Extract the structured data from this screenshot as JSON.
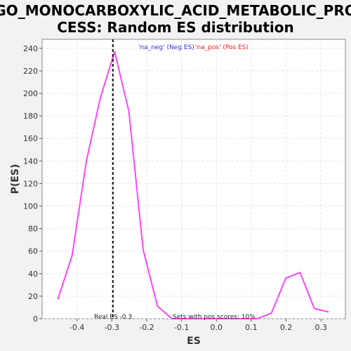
{
  "chart_data": {
    "type": "line",
    "title_line1": "GO_MONOCARBOXYLIC_ACID_METABOLIC_PRO",
    "title_line2": "CESS: Random ES distribution",
    "xlabel": "ES",
    "ylabel": "P(ES)",
    "xlim": [
      -0.5,
      0.37
    ],
    "ylim": [
      0,
      248
    ],
    "xticks": [
      -0.4,
      -0.3,
      -0.2,
      -0.1,
      0.0,
      0.1,
      0.2,
      0.3
    ],
    "xtick_labels": [
      "-0.4",
      "-0.3",
      "-0.2",
      "-0.1",
      "0.0",
      "0.1",
      "0.2",
      "0.3"
    ],
    "yticks": [
      0,
      20,
      40,
      60,
      80,
      100,
      120,
      140,
      160,
      180,
      200,
      220,
      240
    ],
    "ytick_labels": [
      "0",
      "20",
      "40",
      "60",
      "80",
      "100",
      "120",
      "140",
      "160",
      "180",
      "200",
      "220",
      "240"
    ],
    "grid": true,
    "series": [
      {
        "color": "#ff44ff",
        "x": [
          -0.455,
          -0.414,
          -0.373,
          -0.333,
          -0.292,
          -0.251,
          -0.21,
          -0.169,
          -0.128,
          -0.088,
          -0.047,
          -0.006,
          0.035,
          0.076,
          0.117,
          0.158,
          0.199,
          0.24,
          0.281,
          0.322
        ],
        "values": [
          17,
          56,
          140,
          196,
          237,
          184,
          61,
          11,
          0,
          0,
          0,
          0,
          0,
          0,
          0,
          5,
          36,
          41,
          9,
          6
        ]
      }
    ],
    "real_es": -0.297,
    "real_es_label": "Real ES -0.3",
    "pos_scores_label": "Sets with pos scores: 10%",
    "legend": {
      "placement": "top-center",
      "neg_label": "'na_neg' (Neg ES)",
      "pos_label": "'na_pos' (Pos ES)",
      "neg_color": "#3333cc",
      "pos_color": "#ee2222"
    }
  }
}
